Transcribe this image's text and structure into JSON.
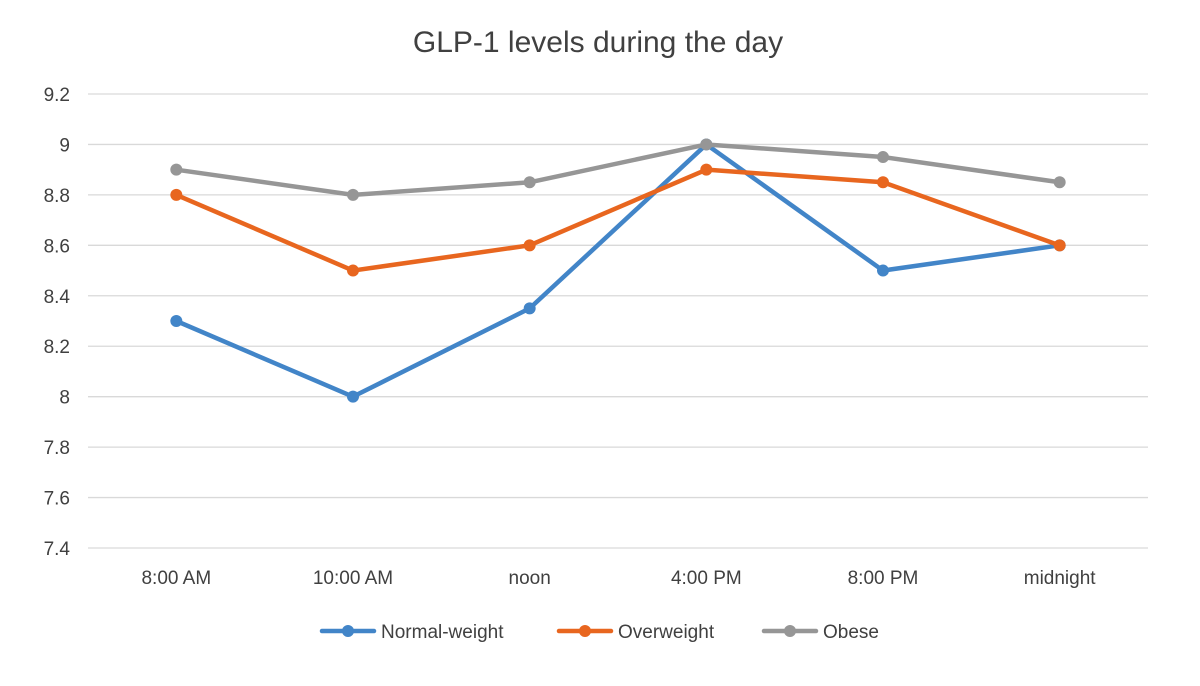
{
  "chart_data": {
    "type": "line",
    "title": "GLP-1 levels during the day",
    "xlabel": "",
    "ylabel": "",
    "categories": [
      "8:00 AM",
      "10:00 AM",
      "noon",
      "4:00 PM",
      "8:00 PM",
      "midnight"
    ],
    "ylim": [
      7.4,
      9.2
    ],
    "y_ticks": [
      "7.4",
      "7.6",
      "7.8",
      "8",
      "8.2",
      "8.4",
      "8.6",
      "8.8",
      "9",
      "9.2"
    ],
    "grid": true,
    "legend_position": "bottom",
    "series": [
      {
        "name": "Normal-weight",
        "color": "#4285c8",
        "values": [
          8.3,
          8.0,
          8.35,
          9.0,
          8.5,
          8.6
        ]
      },
      {
        "name": "Overweight",
        "color": "#e8661f",
        "values": [
          8.8,
          8.5,
          8.6,
          8.9,
          8.85,
          8.6
        ]
      },
      {
        "name": "Obese",
        "color": "#969696",
        "values": [
          8.9,
          8.8,
          8.85,
          9.0,
          8.95,
          8.85
        ]
      }
    ]
  }
}
